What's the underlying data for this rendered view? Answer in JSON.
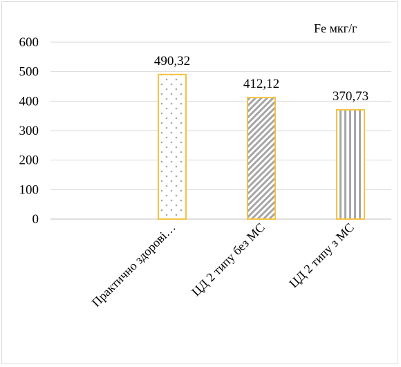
{
  "chart_data": {
    "type": "bar",
    "categories": [
      "Практично здорові…",
      "ЦД 2 типу без МС",
      "ЦД 2 типу з МС"
    ],
    "values": [
      490.32,
      412.12,
      370.73
    ],
    "data_labels": [
      "490,32",
      "412,12",
      "370,73"
    ],
    "legend_text": "Fe мкг/г",
    "ylim": [
      0,
      600
    ],
    "yticks": [
      0,
      100,
      200,
      300,
      400,
      500,
      600
    ],
    "grid": true,
    "bar_border_color": "#f5c242",
    "patterns": [
      "dots",
      "diagonal-stripes",
      "vertical-stripes"
    ]
  }
}
